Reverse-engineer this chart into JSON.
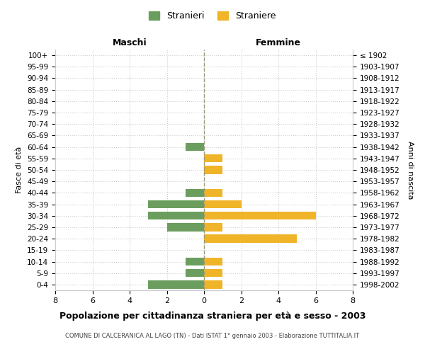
{
  "age_groups": [
    "0-4",
    "5-9",
    "10-14",
    "15-19",
    "20-24",
    "25-29",
    "30-34",
    "35-39",
    "40-44",
    "45-49",
    "50-54",
    "55-59",
    "60-64",
    "65-69",
    "70-74",
    "75-79",
    "80-84",
    "85-89",
    "90-94",
    "95-99",
    "100+"
  ],
  "birth_years": [
    "1998-2002",
    "1993-1997",
    "1988-1992",
    "1983-1987",
    "1978-1982",
    "1973-1977",
    "1968-1972",
    "1963-1967",
    "1958-1962",
    "1953-1957",
    "1948-1952",
    "1943-1947",
    "1938-1942",
    "1933-1937",
    "1928-1932",
    "1923-1927",
    "1918-1922",
    "1913-1917",
    "1908-1912",
    "1903-1907",
    "≤ 1902"
  ],
  "males": [
    3,
    1,
    1,
    0,
    0,
    2,
    3,
    3,
    1,
    0,
    0,
    0,
    1,
    0,
    0,
    0,
    0,
    0,
    0,
    0,
    0
  ],
  "females": [
    1,
    1,
    1,
    0,
    5,
    1,
    6,
    2,
    1,
    0,
    1,
    1,
    0,
    0,
    0,
    0,
    0,
    0,
    0,
    0,
    0
  ],
  "color_male": "#6b9e5e",
  "color_female": "#f0b429",
  "background_color": "#ffffff",
  "grid_color": "#cccccc",
  "title": "Popolazione per cittadinanza straniera per età e sesso - 2003",
  "subtitle": "COMUNE DI CALCERANICA AL LAGO (TN) - Dati ISTAT 1° gennaio 2003 - Elaborazione TUTTITALIA.IT",
  "xlabel_left": "Maschi",
  "xlabel_right": "Femmine",
  "ylabel_left": "Fasce di età",
  "ylabel_right": "Anni di nascita",
  "xlim": 8,
  "legend_stranieri": "Stranieri",
  "legend_straniere": "Straniere"
}
